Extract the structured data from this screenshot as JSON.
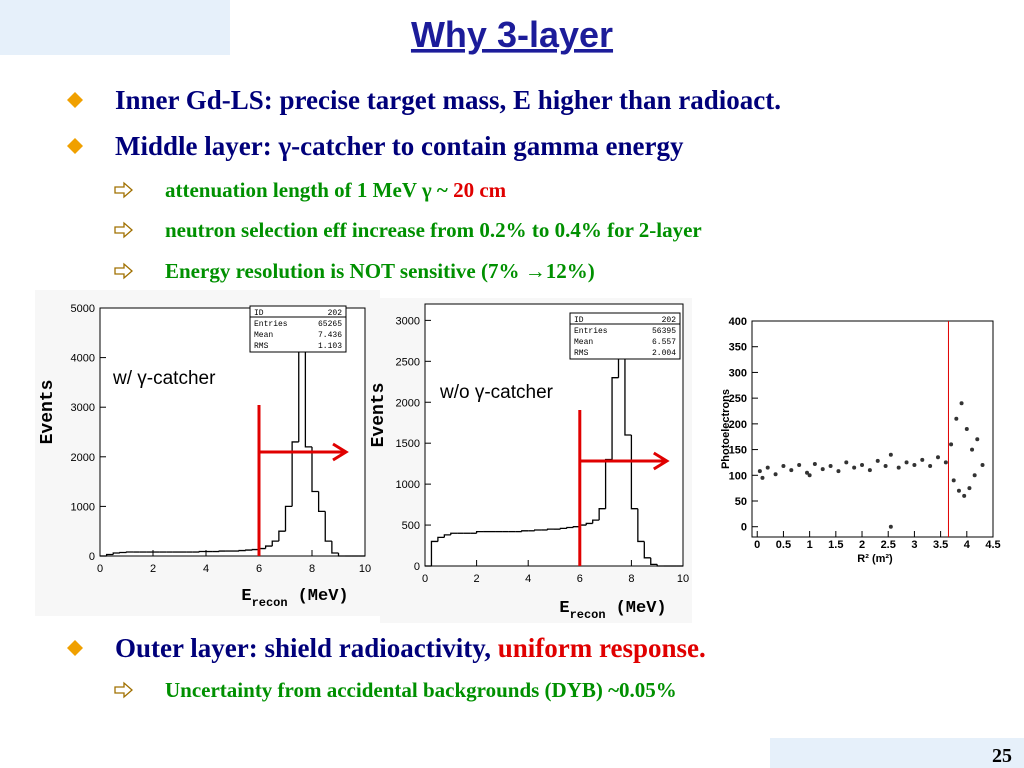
{
  "title": "Why 3-layer",
  "bullets": [
    {
      "segments": [
        "Inner Gd-LS: precise target mass, E higher than radioact."
      ]
    },
    {
      "segments": [
        "Middle layer: γ-catcher to contain gamma energy"
      ],
      "sub": [
        {
          "segments": [
            "attenuation length of 1 MeV γ ~ ",
            "20 cm"
          ]
        },
        {
          "segments": [
            "neutron selection eff increase from 0.2% to 0.4% for 2-layer"
          ]
        },
        {
          "segments": [
            "Energy resolution is NOT sensitive (7% →12%)"
          ]
        }
      ]
    },
    {
      "segments": [
        "Outer layer: shield radioactivity, ",
        "uniform response."
      ],
      "sub": [
        {
          "segments": [
            "Uncertainty from accidental backgrounds (DYB) ~0.05%"
          ]
        }
      ]
    }
  ],
  "page": "25",
  "chart_data": [
    {
      "type": "histogram",
      "annotation": "w/ γ-catcher",
      "cut_x": 6,
      "y_label": "Events",
      "x_label": "E",
      "x_label_sub": "recon",
      "x_label_unit": "(MeV)",
      "stats": [
        {
          "name": "ID",
          "value": 202
        },
        {
          "name": "Entries",
          "value": 65265
        },
        {
          "name": "Mean",
          "value": 7.436
        },
        {
          "name": "RMS",
          "value": 1.103
        }
      ],
      "bins": [
        0,
        0.25,
        0.5,
        0.75,
        1,
        1.25,
        1.5,
        1.75,
        2,
        2.25,
        2.5,
        2.75,
        3,
        3.25,
        3.5,
        3.75,
        4,
        4.25,
        4.5,
        4.75,
        5,
        5.25,
        5.5,
        5.75,
        6,
        6.25,
        6.5,
        6.75,
        7,
        7.25,
        7.5,
        7.75,
        8,
        8.25,
        8.5,
        8.75,
        9,
        9.25,
        9.5,
        9.75,
        10
      ],
      "values": [
        0,
        30,
        60,
        70,
        80,
        80,
        80,
        80,
        80,
        80,
        80,
        80,
        80,
        80,
        80,
        90,
        90,
        90,
        100,
        100,
        100,
        110,
        120,
        130,
        150,
        200,
        300,
        500,
        1000,
        2300,
        4700,
        2200,
        1300,
        900,
        300,
        60,
        0,
        0,
        0,
        0
      ],
      "color": "#000000",
      "xlim": [
        0,
        10
      ],
      "ylim": [
        0,
        5000
      ],
      "xticks": [
        0,
        2,
        4,
        6,
        8,
        10
      ],
      "yticks": [
        0,
        1000,
        2000,
        3000,
        4000,
        5000
      ]
    },
    {
      "type": "histogram",
      "annotation": "w/o γ-catcher",
      "cut_x": 6,
      "y_label": "Events",
      "x_label": "E",
      "x_label_sub": "recon",
      "x_label_unit": "(MeV)",
      "stats": [
        {
          "name": "ID",
          "value": 202
        },
        {
          "name": "Entries",
          "value": 56395
        },
        {
          "name": "Mean",
          "value": 6.557
        },
        {
          "name": "RMS",
          "value": 2.004
        }
      ],
      "bins": [
        0,
        0.25,
        0.5,
        0.75,
        1,
        1.25,
        1.5,
        1.75,
        2,
        2.25,
        2.5,
        2.75,
        3,
        3.25,
        3.5,
        3.75,
        4,
        4.25,
        4.5,
        4.75,
        5,
        5.25,
        5.5,
        5.75,
        6,
        6.25,
        6.5,
        6.75,
        7,
        7.25,
        7.5,
        7.75,
        8,
        8.25,
        8.5,
        8.75,
        9,
        9.25,
        9.5,
        9.75,
        10
      ],
      "values": [
        0,
        300,
        350,
        380,
        400,
        400,
        400,
        400,
        420,
        420,
        420,
        420,
        420,
        420,
        420,
        430,
        430,
        440,
        440,
        450,
        450,
        460,
        470,
        480,
        500,
        520,
        560,
        700,
        1300,
        2300,
        3000,
        1600,
        700,
        300,
        100,
        20,
        0,
        0,
        0,
        0
      ],
      "color": "#000000",
      "xlim": [
        0,
        10
      ],
      "ylim": [
        0,
        3200
      ],
      "xticks": [
        0,
        2,
        4,
        6,
        8,
        10
      ],
      "yticks": [
        0,
        500,
        1000,
        1500,
        2000,
        2500,
        3000
      ]
    },
    {
      "type": "scatter",
      "cut_x": 3.65,
      "y_label": "Photoelectrons",
      "x_label": "R² (m²)",
      "x": [
        0.05,
        0.2,
        0.35,
        0.5,
        0.65,
        0.8,
        0.95,
        1.1,
        1.25,
        1.4,
        1.55,
        1.7,
        1.85,
        2.0,
        2.15,
        2.3,
        2.45,
        2.55,
        2.55,
        2.7,
        2.85,
        3.0,
        3.15,
        3.3,
        3.45,
        3.6,
        3.7,
        3.8,
        3.9,
        4.0,
        4.1,
        4.2,
        4.3,
        3.75,
        3.85,
        3.95,
        4.05,
        4.15,
        0.1,
        1.0
      ],
      "values": [
        108,
        115,
        102,
        118,
        110,
        120,
        105,
        122,
        112,
        118,
        108,
        125,
        115,
        120,
        110,
        128,
        118,
        0,
        140,
        115,
        125,
        120,
        130,
        118,
        135,
        125,
        160,
        210,
        240,
        190,
        150,
        170,
        120,
        90,
        70,
        60,
        75,
        100,
        95,
        100
      ],
      "color": "#333333",
      "xlim": [
        -0.1,
        4.5
      ],
      "ylim": [
        -20,
        400
      ],
      "xticks": [
        0,
        0.5,
        1,
        1.5,
        2,
        2.5,
        3,
        3.5,
        4,
        4.5
      ],
      "yticks": [
        0,
        50,
        100,
        150,
        200,
        250,
        300,
        350,
        400
      ]
    }
  ]
}
